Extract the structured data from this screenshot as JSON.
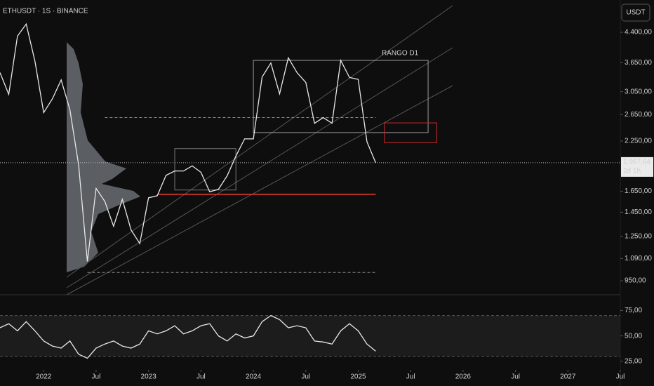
{
  "symbol_title": "ETHUSDT · 1S · BINANCE",
  "currency_button": "USDT",
  "chart_data": [
    {
      "type": "line",
      "log_scale": true,
      "color": "#e8e8e8",
      "x": [
        "2021-08",
        "2021-09",
        "2021-10",
        "2021-11",
        "2021-12",
        "2022-01",
        "2022-02",
        "2022-03",
        "2022-04",
        "2022-05",
        "2022-06",
        "2022-07",
        "2022-08",
        "2022-09",
        "2022-10",
        "2022-11",
        "2022-12",
        "2023-01",
        "2023-02",
        "2023-03",
        "2023-04",
        "2023-05",
        "2023-06",
        "2023-07",
        "2023-08",
        "2023-09",
        "2023-10",
        "2023-11",
        "2023-12",
        "2024-01",
        "2024-02",
        "2024-03",
        "2024-04",
        "2024-05",
        "2024-06",
        "2024-07",
        "2024-08",
        "2024-09",
        "2024-10",
        "2024-11",
        "2024-12",
        "2025-01",
        "2025-02",
        "2025-03"
      ],
      "values": [
        3430,
        3000,
        4300,
        4630,
        3680,
        2680,
        2920,
        3280,
        2730,
        1940,
        1070,
        1680,
        1550,
        1330,
        1570,
        1300,
        1195,
        1585,
        1605,
        1820,
        1870,
        1870,
        1930,
        1855,
        1645,
        1670,
        1815,
        2050,
        2280,
        2280,
        3340,
        3640,
        3010,
        3760,
        3430,
        3230,
        2510,
        2600,
        2510,
        3700,
        3330,
        3290,
        2240,
        1967.64
      ],
      "xlim": [
        "2021-08",
        "2027-07"
      ],
      "xticks": [
        {
          "value": "2022-01",
          "label": "2022"
        },
        {
          "value": "2022-07",
          "label": "Jul"
        },
        {
          "value": "2023-01",
          "label": "2023"
        },
        {
          "value": "2023-07",
          "label": "Jul"
        },
        {
          "value": "2024-01",
          "label": "2024"
        },
        {
          "value": "2024-07",
          "label": "Jul"
        },
        {
          "value": "2025-01",
          "label": "2025"
        },
        {
          "value": "2025-07",
          "label": "Jul"
        },
        {
          "value": "2026-01",
          "label": "2026"
        },
        {
          "value": "2026-07",
          "label": "Jul"
        },
        {
          "value": "2027-01",
          "label": "2027"
        },
        {
          "value": "2027-07",
          "label": "Jul"
        }
      ],
      "ylim": [
        879,
        5370
      ],
      "yticks": [
        {
          "value": 950,
          "label": "950,00"
        },
        {
          "value": 1090,
          "label": "1.090,00"
        },
        {
          "value": 1250,
          "label": "1.250,00"
        },
        {
          "value": 1450,
          "label": "1.450,00"
        },
        {
          "value": 1650,
          "label": "1.650,00"
        },
        {
          "value": 2250,
          "label": "2.250,00"
        },
        {
          "value": 2650,
          "label": "2.650,00"
        },
        {
          "value": 3050,
          "label": "3.050,00"
        },
        {
          "value": 3650,
          "label": "3.650,00"
        },
        {
          "value": 4400,
          "label": "4.400,00"
        }
      ],
      "last": {
        "value": 1967.64,
        "label": "1.967,64",
        "countdown": "2d 1h"
      },
      "hlines": [
        {
          "value": 1620,
          "x": [
            "2023-02",
            "2025-03"
          ],
          "color": "#e0382c",
          "style": "solid"
        },
        {
          "value": 2600,
          "x": [
            "2022-08",
            "2025-03"
          ],
          "color": "#8a8a8a",
          "style": "dashed"
        },
        {
          "value": 1000,
          "x": [
            "2022-06",
            "2025-03"
          ],
          "color": "#8a8a8a",
          "style": "dashed"
        }
      ],
      "rectangles": [
        {
          "label": "RANGO D1",
          "x": [
            "2024-01",
            "2025-09"
          ],
          "y": [
            2370,
            3700
          ],
          "color": "#9a9a9a"
        },
        {
          "x": [
            "2025-04",
            "2025-10"
          ],
          "y": [
            2228,
            2516
          ],
          "color": "#d0282c"
        },
        {
          "x": [
            "2023-04",
            "2023-11"
          ],
          "y": [
            1663,
            2147
          ],
          "color": "#777777"
        }
      ]
    },
    {
      "type": "line",
      "color": "#e8e8e8",
      "values": [
        58,
        62,
        55,
        64,
        55,
        45,
        40,
        38,
        45,
        32,
        28,
        38,
        42,
        45,
        40,
        38,
        42,
        55,
        52,
        55,
        60,
        52,
        55,
        60,
        62,
        50,
        45,
        52,
        48,
        50,
        64,
        70,
        66,
        58,
        60,
        58,
        45,
        44,
        42,
        55,
        62,
        55,
        42,
        35
      ],
      "ylim": [
        18,
        87
      ],
      "yticks": [
        {
          "value": 25,
          "label": "25,00"
        },
        {
          "value": 50,
          "label": "50,00"
        },
        {
          "value": 75,
          "label": "75,00"
        }
      ],
      "band": [
        30,
        70
      ]
    }
  ]
}
